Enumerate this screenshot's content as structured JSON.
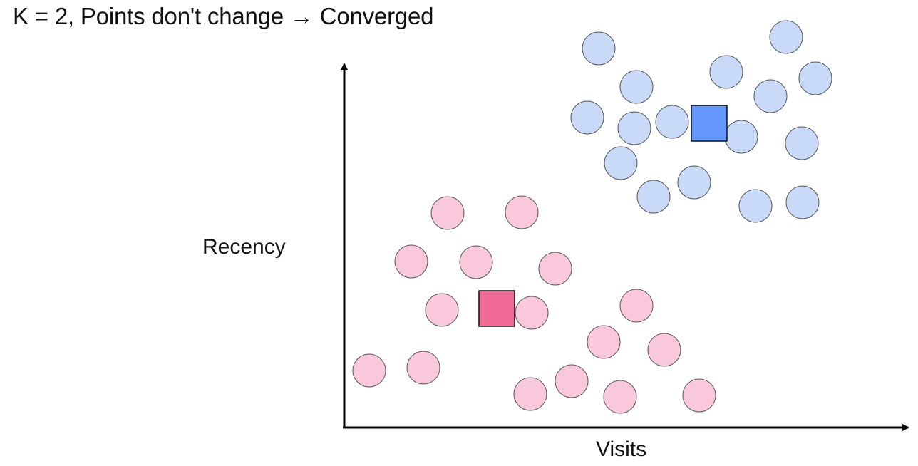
{
  "title": "K = 2, Points don't change → Converged",
  "chart_data": {
    "type": "scatter",
    "xlabel": "Visits",
    "ylabel": "Recency",
    "clusters": [
      {
        "color": "#c9daf8",
        "centroid_color": "#6699ff",
        "centroid": [
          995,
          173
        ],
        "points": [
          [
            840,
            68
          ],
          [
            1103,
            52
          ],
          [
            893,
            122
          ],
          [
            1019,
            101
          ],
          [
            1144,
            110
          ],
          [
            1081,
            135
          ],
          [
            824,
            165
          ],
          [
            890,
            180
          ],
          [
            943,
            171
          ],
          [
            1040,
            192
          ],
          [
            1125,
            201
          ],
          [
            871,
            229
          ],
          [
            974,
            256
          ],
          [
            917,
            276
          ],
          [
            1060,
            289
          ],
          [
            1126,
            284
          ]
        ]
      },
      {
        "color": "#f9c8dc",
        "centroid_color": "#f06a96",
        "centroid": [
          697,
          433
        ],
        "points": [
          [
            628,
            299
          ],
          [
            732,
            298
          ],
          [
            577,
            367
          ],
          [
            668,
            368
          ],
          [
            779,
            377
          ],
          [
            620,
            435
          ],
          [
            746,
            439
          ],
          [
            893,
            429
          ],
          [
            518,
            520
          ],
          [
            594,
            516
          ],
          [
            847,
            480
          ],
          [
            932,
            491
          ],
          [
            744,
            553
          ],
          [
            802,
            535
          ],
          [
            870,
            557
          ],
          [
            981,
            555
          ]
        ]
      }
    ]
  }
}
